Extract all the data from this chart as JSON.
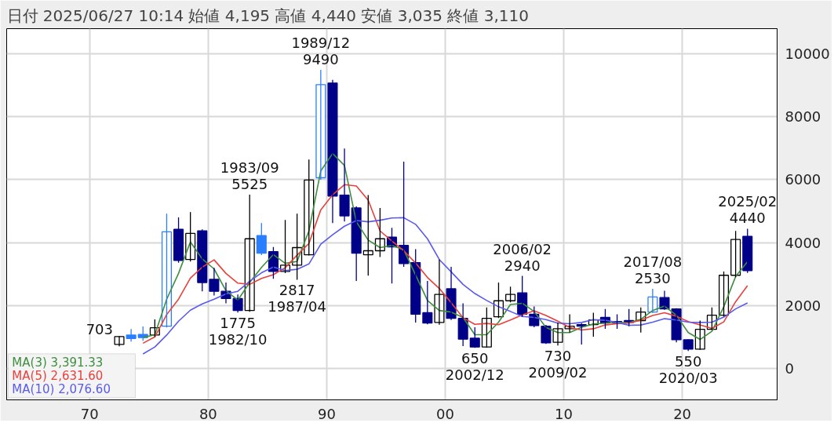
{
  "chart_data": {
    "type": "candlestick",
    "title": "日付 2025/06/27 10:14",
    "x": [
      1972.5,
      1973.5,
      1974.5,
      1975.5,
      1976.5,
      1977.5,
      1978.5,
      1979.5,
      1980.5,
      1981.5,
      1982.5,
      1983.5,
      1984.5,
      1985.5,
      1986.5,
      1987.5,
      1988.5,
      1989.5,
      1990.5,
      1991.5,
      1992.5,
      1993.5,
      1994.5,
      1995.5,
      1996.5,
      1997.5,
      1998.5,
      1999.5,
      2000.5,
      2001.5,
      2002.5,
      2003.5,
      2004.5,
      2005.5,
      2006.5,
      2007.5,
      2008.5,
      2009.5,
      2010.5,
      2011.5,
      2012.5,
      2013.5,
      2014.5,
      2015.5,
      2016.5,
      2017.5,
      2018.5,
      2019.5,
      2020.5,
      2021.5,
      2022.5,
      2023.5,
      2024.5,
      2025.5
    ],
    "ohlc": [
      [
        760,
        1030,
        703,
        1010
      ],
      [
        1060,
        1250,
        850,
        950
      ],
      [
        1080,
        1330,
        880,
        980
      ],
      [
        1060,
        1560,
        1000,
        1290
      ],
      [
        1340,
        4920,
        1300,
        4340
      ],
      [
        4420,
        4800,
        3360,
        3430
      ],
      [
        3460,
        4970,
        3400,
        4290
      ],
      [
        4370,
        4420,
        2450,
        2730
      ],
      [
        2830,
        3200,
        2320,
        2450
      ],
      [
        2450,
        2730,
        2070,
        2220
      ],
      [
        2220,
        2350,
        1775,
        1840
      ],
      [
        1840,
        5525,
        1800,
        4120
      ],
      [
        4220,
        4620,
        3600,
        3660
      ],
      [
        3710,
        3860,
        2850,
        3080
      ],
      [
        3080,
        4720,
        3030,
        3280
      ],
      [
        3280,
        4920,
        2817,
        3840
      ],
      [
        3610,
        6640,
        3590,
        5990
      ],
      [
        6060,
        9490,
        6000,
        9020
      ],
      [
        9070,
        9170,
        4620,
        5480
      ],
      [
        5510,
        6990,
        4670,
        4850
      ],
      [
        5100,
        5150,
        2780,
        3660
      ],
      [
        3610,
        5510,
        2950,
        3740
      ],
      [
        3740,
        5100,
        3540,
        4120
      ],
      [
        4170,
        4470,
        2700,
        3860
      ],
      [
        3910,
        6570,
        3230,
        3330
      ],
      [
        3360,
        3790,
        1460,
        1720
      ],
      [
        1770,
        2780,
        1400,
        1440
      ],
      [
        1460,
        3460,
        1390,
        2350
      ],
      [
        2530,
        3230,
        1540,
        1590
      ],
      [
        1590,
        2070,
        710,
        930
      ],
      [
        960,
        1310,
        650,
        680
      ],
      [
        680,
        1940,
        660,
        1590
      ],
      [
        1640,
        2730,
        1600,
        2150
      ],
      [
        2150,
        2600,
        2100,
        2350
      ],
      [
        2400,
        2940,
        1640,
        1720
      ],
      [
        1720,
        1970,
        1310,
        1360
      ],
      [
        1340,
        1380,
        780,
        810
      ],
      [
        830,
        1460,
        730,
        1260
      ],
      [
        1260,
        1720,
        1140,
        1340
      ],
      [
        1390,
        1430,
        760,
        1340
      ],
      [
        1390,
        1770,
        1010,
        1540
      ],
      [
        1620,
        1890,
        1260,
        1440
      ],
      [
        1490,
        1720,
        1260,
        1440
      ],
      [
        1520,
        1890,
        1340,
        1460
      ],
      [
        1520,
        1940,
        1140,
        1790
      ],
      [
        1790,
        2530,
        1760,
        2270
      ],
      [
        2250,
        2470,
        1860,
        1890
      ],
      [
        1890,
        1910,
        830,
        910
      ],
      [
        910,
        930,
        550,
        610
      ],
      [
        610,
        1520,
        590,
        1240
      ],
      [
        1240,
        1940,
        1220,
        1690
      ],
      [
        1690,
        3080,
        1650,
        2960
      ],
      [
        2960,
        4370,
        2900,
        4100
      ],
      [
        4195,
        4440,
        3035,
        3110
      ]
    ],
    "colors": [
      "#000000",
      "#2a7fff",
      "#2a7fff",
      "#000000",
      "#2a7fff",
      "#000088",
      "#000000",
      "#000088",
      "#000088",
      "#000088",
      "#000088",
      "#000000",
      "#2a7fff",
      "#000088",
      "#000000",
      "#000000",
      "#000000",
      "#2a7fff",
      "#000088",
      "#000088",
      "#000088",
      "#000000",
      "#000000",
      "#000088",
      "#000088",
      "#000088",
      "#000088",
      "#000000",
      "#000088",
      "#000088",
      "#000088",
      "#000000",
      "#000000",
      "#000000",
      "#000088",
      "#000088",
      "#000088",
      "#000000",
      "#000000",
      "#000088",
      "#000000",
      "#000088",
      "#000088",
      "#000088",
      "#000000",
      "#2a7fff",
      "#000088",
      "#000088",
      "#000088",
      "#000000",
      "#000000",
      "#000000",
      "#000000",
      "#000088"
    ],
    "series": [
      {
        "type": "line",
        "name": "MA(3)  3,391.33",
        "color": "#3d8f3d",
        "values": [
          null,
          null,
          980,
          1070,
          2200,
          3020,
          4020,
          3480,
          3160,
          2470,
          2170,
          2730,
          3210,
          3620,
          3340,
          3400,
          4370,
          6280,
          6830,
          6450,
          4660,
          4080,
          3840,
          3910,
          3770,
          2970,
          2160,
          1840,
          1790,
          1620,
          1070,
          1070,
          1470,
          2030,
          2070,
          1810,
          1300,
          1140,
          1140,
          1310,
          1410,
          1440,
          1470,
          1450,
          1560,
          1840,
          1980,
          1690,
          1140,
          920,
          1180,
          1960,
          2920,
          3390
        ]
      },
      {
        "type": "line",
        "name": "MA(5)  2,631.60",
        "color": "#e8413c",
        "values": [
          null,
          null,
          800,
          1000,
          1710,
          2200,
          2870,
          3220,
          3450,
          3020,
          2710,
          2670,
          2860,
          2980,
          3200,
          3600,
          3970,
          5040,
          5520,
          5840,
          5800,
          5350,
          4370,
          4050,
          3740,
          3350,
          2890,
          2540,
          2090,
          1610,
          1400,
          1430,
          1390,
          1540,
          1700,
          1830,
          1680,
          1500,
          1300,
          1220,
          1260,
          1380,
          1420,
          1440,
          1530,
          1680,
          1770,
          1660,
          1490,
          1380,
          1270,
          1480,
          2120,
          2630
        ]
      },
      {
        "type": "line",
        "name": "MA(10)  2,076.60",
        "color": "#5a5af0",
        "values": [
          null,
          null,
          460,
          680,
          1060,
          1500,
          1850,
          2050,
          2200,
          2370,
          2450,
          2770,
          3040,
          3220,
          3110,
          3150,
          3320,
          3950,
          4250,
          4520,
          4700,
          4660,
          4710,
          4780,
          4790,
          4580,
          4120,
          3460,
          3070,
          2670,
          2380,
          2160,
          1960,
          1810,
          1650,
          1620,
          1550,
          1440,
          1420,
          1460,
          1550,
          1530,
          1460,
          1370,
          1380,
          1470,
          1580,
          1540,
          1470,
          1460,
          1470,
          1630,
          1890,
          2080
        ]
      }
    ],
    "annotations": [
      "始値 4,195",
      "高値 4,440",
      "安値 3,035",
      "終値 3,110",
      {
        "text": "703",
        "x": 1972.5,
        "y": 703
      },
      {
        "text": "1775\n1982/10",
        "x": 1982.5,
        "y": 1775
      },
      {
        "text": "1983/09\n5525",
        "x": 1983.5,
        "y": 5525
      },
      {
        "text": "2817\n1987/04",
        "x": 1987.5,
        "y": 2817
      },
      {
        "text": "1989/12\n9490",
        "x": 1989.5,
        "y": 9490
      },
      {
        "text": "650\n2002/12",
        "x": 2002.5,
        "y": 650
      },
      {
        "text": "2006/02\n2940",
        "x": 2006.5,
        "y": 2940
      },
      {
        "text": "730\n2009/02",
        "x": 2009.5,
        "y": 730
      },
      {
        "text": "2017/08\n2530",
        "x": 2017.5,
        "y": 2530
      },
      {
        "text": "550\n2020/03",
        "x": 2020.5,
        "y": 550
      },
      {
        "text": "2025/02\n4440",
        "x": 2025.5,
        "y": 4440
      }
    ],
    "xlim": [
      1963,
      2028
    ],
    "ylim": [
      -1000,
      10800
    ],
    "xticks": [
      {
        "value": 1970,
        "label": "70"
      },
      {
        "value": 1980,
        "label": "80"
      },
      {
        "value": 1990,
        "label": "90"
      },
      {
        "value": 2000,
        "label": "00"
      },
      {
        "value": 2010,
        "label": "10"
      },
      {
        "value": 2020,
        "label": "20"
      }
    ],
    "yticks": [
      0,
      2000,
      4000,
      6000,
      8000,
      10000
    ],
    "grid": true,
    "legend": "bottom left"
  }
}
